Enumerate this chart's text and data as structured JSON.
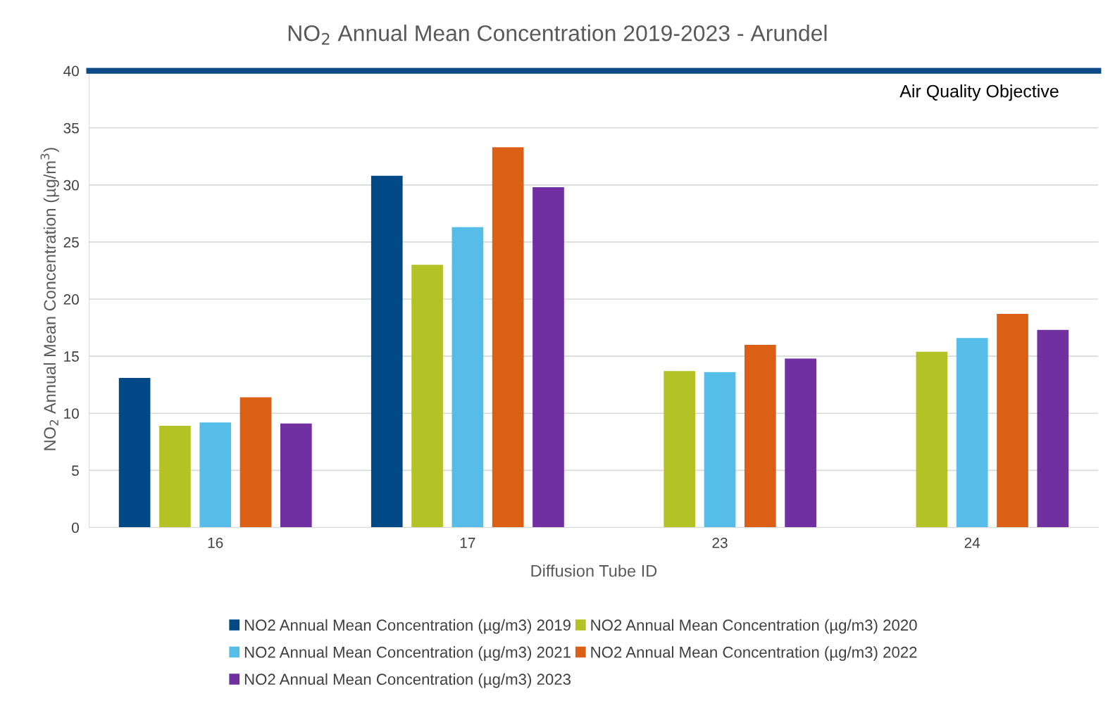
{
  "chart_data": {
    "type": "bar",
    "title": "NO$_{2}$ Annual Mean Concentration 2019-2023 - Arundel",
    "xlabel": "Diffusion Tube ID",
    "ylabel": "NO$_{2}$ Annual Mean Concentration (µg/m$^{3}$)",
    "categories": [
      "16",
      "17",
      "23",
      "24"
    ],
    "series": [
      {
        "name": "NO2 Annual Mean Concentration (µg/m3) 2019",
        "color": "#004987",
        "values": [
          13.1,
          30.8,
          null,
          null
        ]
      },
      {
        "name": "NO2 Annual Mean Concentration (µg/m3) 2020",
        "color": "#b3c224",
        "values": [
          8.9,
          23.0,
          13.7,
          15.4
        ]
      },
      {
        "name": "NO2 Annual Mean Concentration (µg/m3) 2021",
        "color": "#56bde8",
        "values": [
          9.2,
          26.3,
          13.6,
          16.6
        ]
      },
      {
        "name": "NO2 Annual Mean Concentration (µg/m3) 2022",
        "color": "#db5f15",
        "values": [
          11.4,
          33.3,
          16.0,
          18.7
        ]
      },
      {
        "name": "NO2 Annual Mean Concentration (µg/m3) 2023",
        "color": "#7030a0",
        "values": [
          9.1,
          29.8,
          14.8,
          17.3
        ]
      }
    ],
    "ylim": [
      0,
      40
    ],
    "yticks": [
      0,
      5,
      10,
      15,
      20,
      25,
      30,
      35,
      40
    ],
    "grid": "y",
    "legend": "bottom",
    "ref_lines": [
      {
        "axis": "y",
        "value": 40,
        "label": "Air Quality Objective",
        "color": "#0d4a86"
      }
    ]
  }
}
